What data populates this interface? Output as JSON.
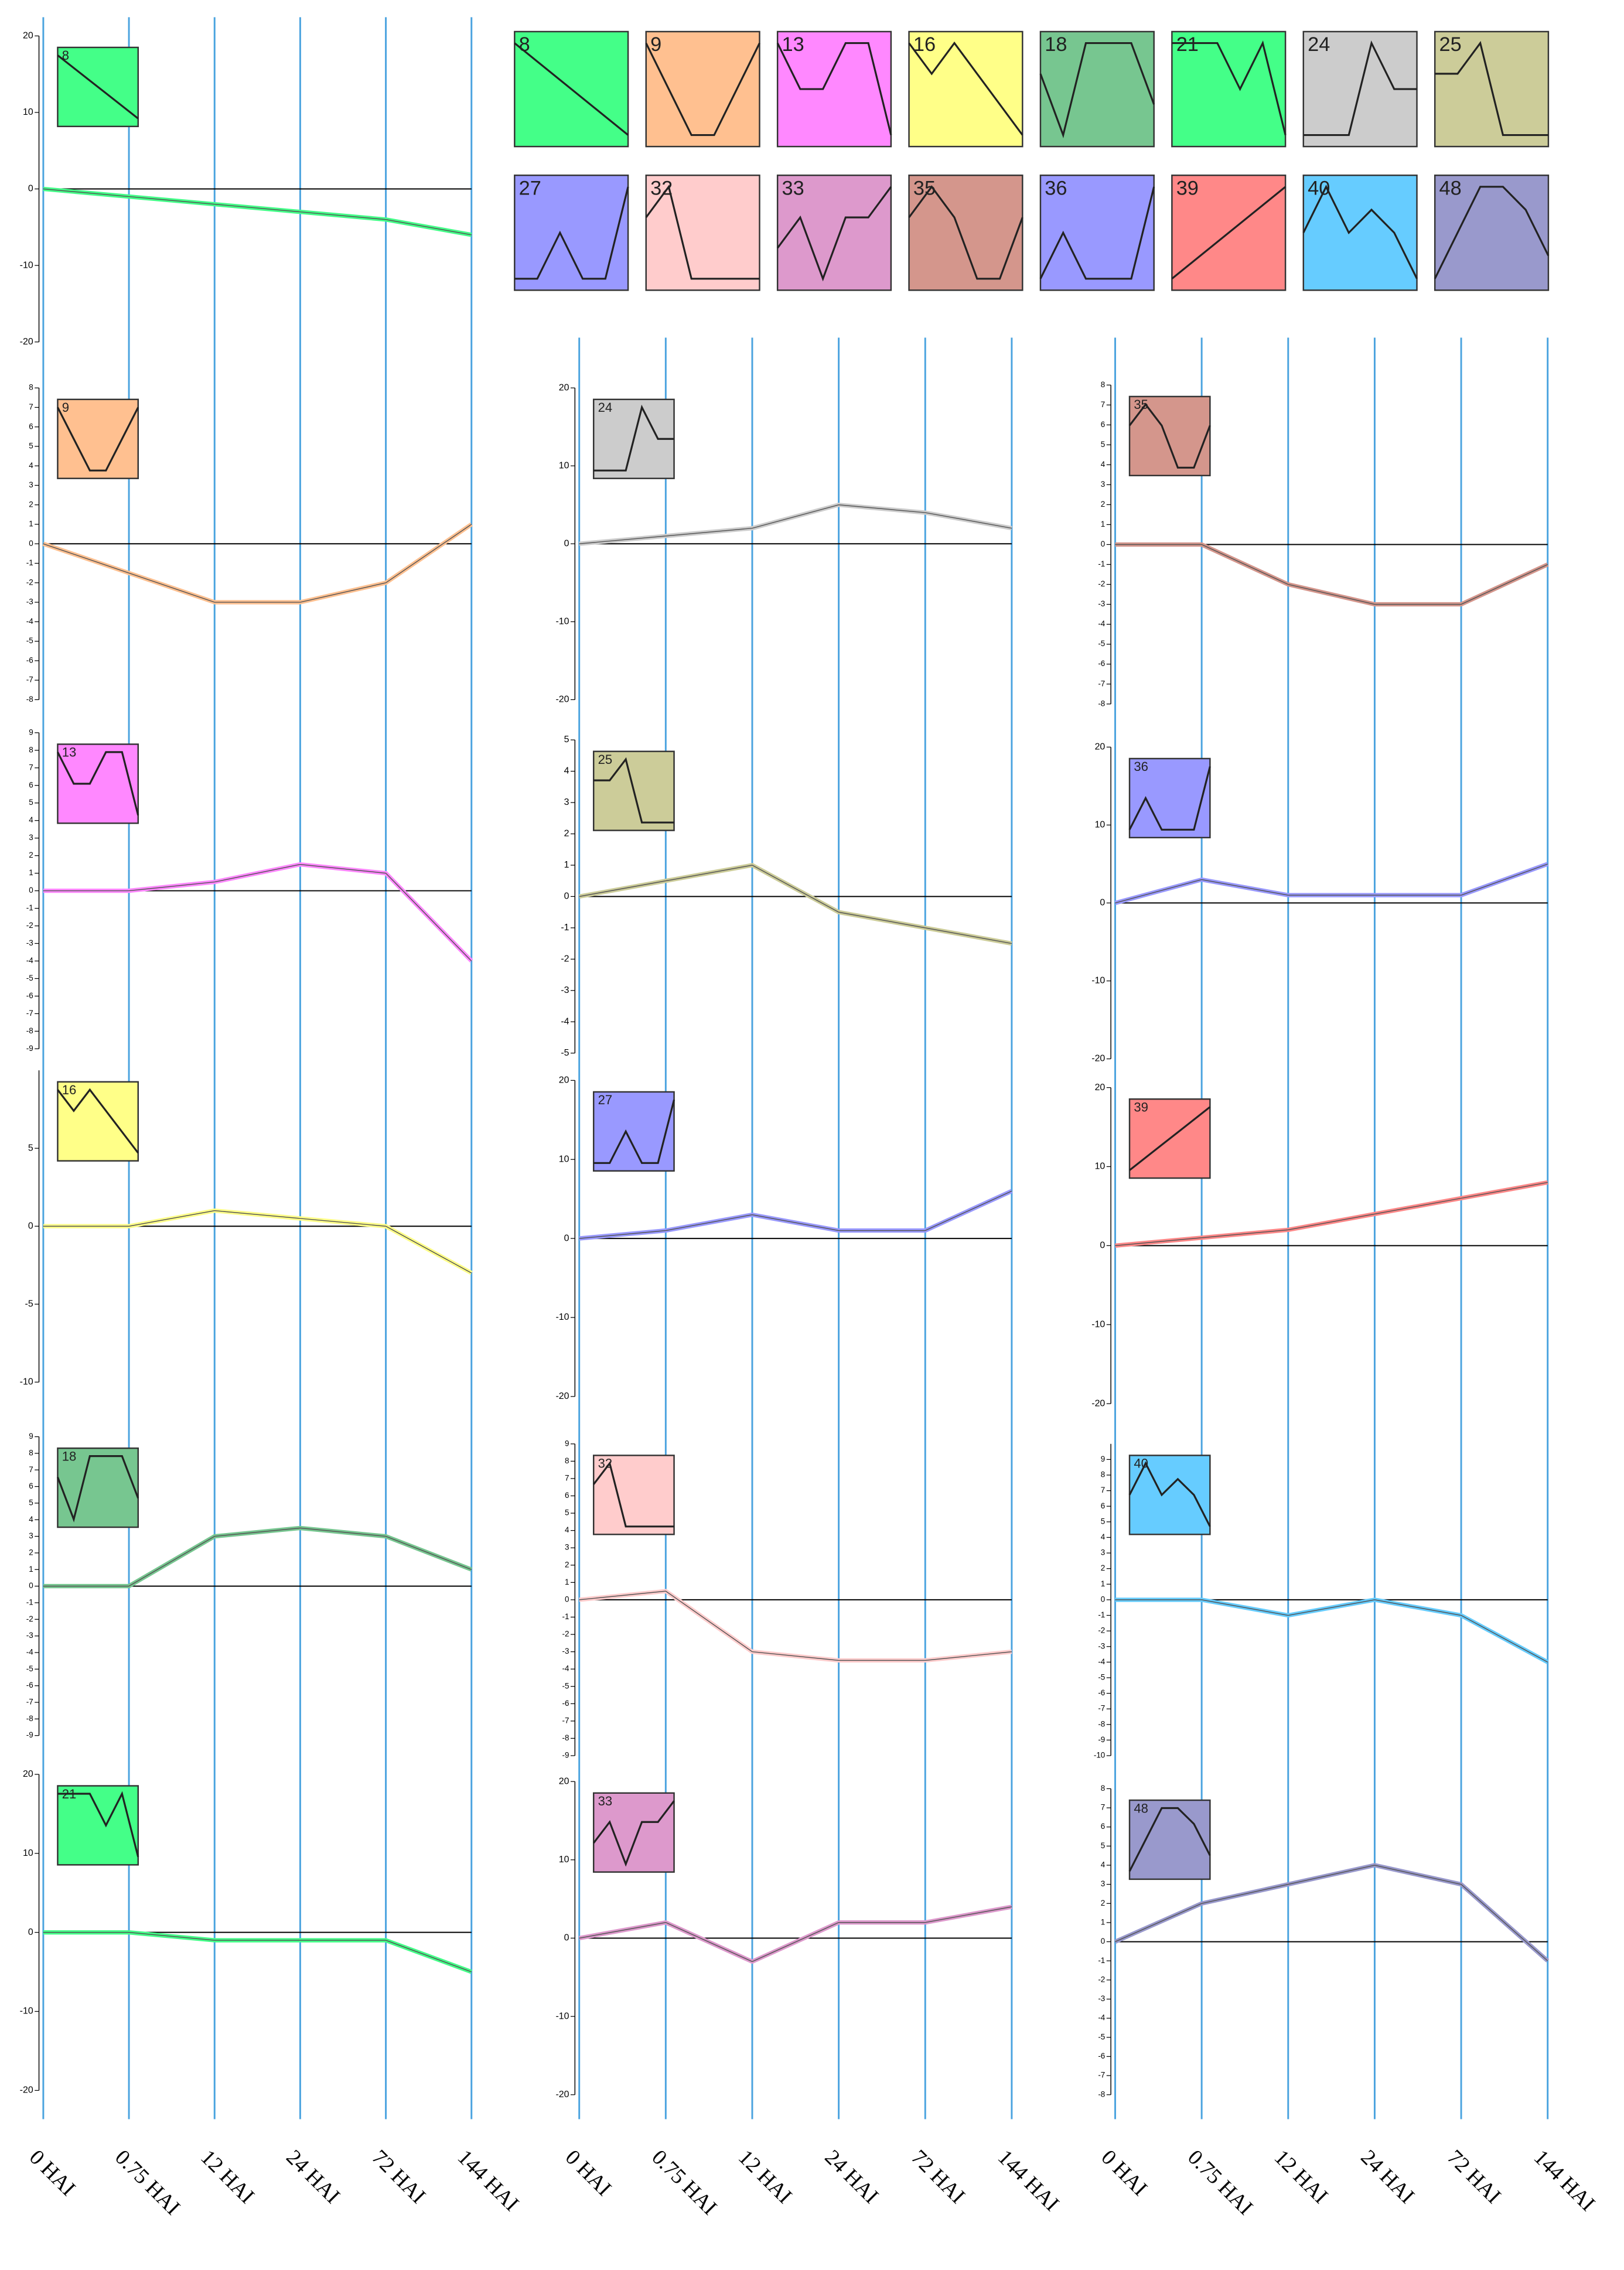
{
  "chart_data": [
    {
      "type": "line",
      "title": "8",
      "color": "#44ff88",
      "profile": [
        0,
        -1,
        -2,
        -3,
        -4,
        -5
      ],
      "categories": [
        "0 HAI",
        "0.75 HAI",
        "12 HAI",
        "24 HAI",
        "72 HAI",
        "144 HAI"
      ],
      "values": [
        0,
        -1,
        -2,
        -3,
        -4,
        -6
      ],
      "ylim": [
        -20,
        20
      ],
      "yticks": [
        20,
        10,
        0,
        -10,
        -20
      ]
    },
    {
      "type": "line",
      "title": "9",
      "color": "#ffc090",
      "profile": [
        0,
        -1,
        -2,
        -2,
        -1,
        0
      ],
      "categories": [
        "0 HAI",
        "0.75 HAI",
        "12 HAI",
        "24 HAI",
        "72 HAI",
        "144 HAI"
      ],
      "values": [
        0,
        -1.5,
        -3,
        -3,
        -2,
        1
      ],
      "ylim": [
        -8,
        8
      ],
      "yticks": [
        8,
        7,
        6,
        5,
        4,
        3,
        2,
        1,
        0,
        -1,
        -2,
        -3,
        -4,
        -5,
        -6,
        -7,
        -8
      ]
    },
    {
      "type": "line",
      "title": "13",
      "color": "#ff88ff",
      "profile": [
        0,
        -1,
        -1,
        0,
        0,
        -2
      ],
      "categories": [
        "0 HAI",
        "0.75 HAI",
        "12 HAI",
        "24 HAI",
        "72 HAI",
        "144 HAI"
      ],
      "values": [
        0,
        0,
        0.5,
        1.5,
        1,
        -4
      ],
      "ylim": [
        -9,
        9
      ],
      "yticks": [
        9,
        8,
        7,
        6,
        5,
        4,
        3,
        2,
        1,
        0,
        -1,
        -2,
        -3,
        -4,
        -5,
        -6,
        -7,
        -8,
        -9
      ]
    },
    {
      "type": "line",
      "title": "16",
      "color": "#ffff88",
      "profile": [
        0,
        -1,
        0,
        -1,
        -2,
        -3
      ],
      "categories": [
        "0 HAI",
        "0.75 HAI",
        "12 HAI",
        "24 HAI",
        "72 HAI",
        "144 HAI"
      ],
      "values": [
        0,
        0,
        1,
        0.5,
        0,
        -3
      ],
      "ylim": [
        -10,
        10
      ],
      "yticks": [
        5,
        0,
        -5,
        -10
      ]
    },
    {
      "type": "line",
      "title": "18",
      "color": "#77c690",
      "profile": [
        0,
        -2,
        1,
        1,
        1,
        -1
      ],
      "categories": [
        "0 HAI",
        "0.75 HAI",
        "12 HAI",
        "24 HAI",
        "72 HAI",
        "144 HAI"
      ],
      "values": [
        0,
        0,
        3,
        3.5,
        3,
        1
      ],
      "ylim": [
        -9,
        9
      ],
      "yticks": [
        9,
        8,
        7,
        6,
        5,
        4,
        3,
        2,
        1,
        0,
        -1,
        -2,
        -3,
        -4,
        -5,
        -6,
        -7,
        -8,
        -9
      ]
    },
    {
      "type": "line",
      "title": "21",
      "color": "#44ff88",
      "profile": [
        0,
        0,
        0,
        -1,
        0,
        -2
      ],
      "categories": [
        "0 HAI",
        "0.75 HAI",
        "12 HAI",
        "24 HAI",
        "72 HAI",
        "144 HAI"
      ],
      "values": [
        0,
        0,
        -1,
        -1,
        -1,
        -5
      ],
      "ylim": [
        -20,
        20
      ],
      "yticks": [
        20,
        10,
        0,
        -10,
        -20
      ]
    },
    {
      "type": "line",
      "title": "24",
      "color": "#cccccc",
      "profile": [
        0,
        0,
        0,
        2,
        1,
        1
      ],
      "categories": [
        "0 HAI",
        "0.75 HAI",
        "12 HAI",
        "24 HAI",
        "72 HAI",
        "144 HAI"
      ],
      "values": [
        0,
        1,
        2,
        5,
        4,
        2
      ],
      "ylim": [
        -20,
        20
      ],
      "yticks": [
        20,
        10,
        0,
        -10,
        -20
      ]
    },
    {
      "type": "line",
      "title": "25",
      "color": "#cccc99",
      "profile": [
        0,
        0,
        1,
        -2,
        -2,
        -2
      ],
      "categories": [
        "0 HAI",
        "0.75 HAI",
        "12 HAI",
        "24 HAI",
        "72 HAI",
        "144 HAI"
      ],
      "values": [
        0,
        0.5,
        1,
        -0.5,
        -1,
        -1.5
      ],
      "ylim": [
        -5,
        5
      ],
      "yticks": [
        5,
        4,
        3,
        2,
        1,
        0,
        -1,
        -2,
        -3,
        -4,
        -5
      ]
    },
    {
      "type": "line",
      "title": "27",
      "color": "#9999ff",
      "profile": [
        0,
        0,
        1,
        0,
        0,
        2
      ],
      "categories": [
        "0 HAI",
        "0.75 HAI",
        "12 HAI",
        "24 HAI",
        "72 HAI",
        "144 HAI"
      ],
      "values": [
        0,
        1,
        3,
        1,
        1,
        6
      ],
      "ylim": [
        -20,
        20
      ],
      "yticks": [
        20,
        10,
        0,
        -10,
        -20
      ]
    },
    {
      "type": "line",
      "title": "32",
      "color": "#ffcccc",
      "profile": [
        0,
        1,
        -2,
        -2,
        -2,
        -2
      ],
      "categories": [
        "0 HAI",
        "0.75 HAI",
        "12 HAI",
        "24 HAI",
        "72 HAI",
        "144 HAI"
      ],
      "values": [
        0,
        0.5,
        -3,
        -3.5,
        -3.5,
        -3
      ],
      "ylim": [
        -9,
        9
      ],
      "yticks": [
        9,
        8,
        7,
        6,
        5,
        4,
        3,
        2,
        1,
        0,
        -1,
        -2,
        -3,
        -4,
        -5,
        -6,
        -7,
        -8,
        -9
      ]
    },
    {
      "type": "line",
      "title": "33",
      "color": "#dd99cc",
      "profile": [
        0,
        1,
        -1,
        1,
        1,
        2
      ],
      "categories": [
        "0 HAI",
        "0.75 HAI",
        "12 HAI",
        "24 HAI",
        "72 HAI",
        "144 HAI"
      ],
      "values": [
        0,
        2,
        -3,
        2,
        2,
        4
      ],
      "ylim": [
        -20,
        20
      ],
      "yticks": [
        20,
        10,
        0,
        -10,
        -20
      ]
    },
    {
      "type": "line",
      "title": "35",
      "color": "#d4968c",
      "profile": [
        0,
        1,
        0,
        -2,
        -2,
        0
      ],
      "categories": [
        "0 HAI",
        "0.75 HAI",
        "12 HAI",
        "24 HAI",
        "72 HAI",
        "144 HAI"
      ],
      "values": [
        0,
        0,
        -2,
        -3,
        -3,
        -1
      ],
      "ylim": [
        -8,
        8
      ],
      "yticks": [
        8,
        7,
        6,
        5,
        4,
        3,
        2,
        1,
        0,
        -1,
        -2,
        -3,
        -4,
        -5,
        -6,
        -7,
        -8
      ]
    },
    {
      "type": "line",
      "title": "36",
      "color": "#9999ff",
      "profile": [
        0,
        1,
        0,
        0,
        0,
        2
      ],
      "categories": [
        "0 HAI",
        "0.75 HAI",
        "12 HAI",
        "24 HAI",
        "72 HAI",
        "144 HAI"
      ],
      "values": [
        0,
        3,
        1,
        1,
        1,
        5
      ],
      "ylim": [
        -20,
        20
      ],
      "yticks": [
        20,
        10,
        0,
        -10,
        -20
      ]
    },
    {
      "type": "line",
      "title": "39",
      "color": "#ff8888",
      "profile": [
        0,
        1,
        2,
        3,
        4,
        5
      ],
      "categories": [
        "0 HAI",
        "0.75 HAI",
        "12 HAI",
        "24 HAI",
        "72 HAI",
        "144 HAI"
      ],
      "values": [
        0,
        1,
        2,
        4,
        6,
        8
      ],
      "ylim": [
        -20,
        20
      ],
      "yticks": [
        20,
        10,
        0,
        -10,
        -20
      ]
    },
    {
      "type": "line",
      "title": "40",
      "color": "#66ccff",
      "profile": [
        0,
        2,
        0,
        1,
        0,
        -2
      ],
      "categories": [
        "0 HAI",
        "0.75 HAI",
        "12 HAI",
        "24 HAI",
        "72 HAI",
        "144 HAI"
      ],
      "values": [
        0,
        0,
        -1,
        0,
        -1,
        -4
      ],
      "ylim": [
        -10,
        10
      ],
      "yticks": [
        9,
        8,
        7,
        6,
        5,
        4,
        3,
        2,
        1,
        0,
        -1,
        -2,
        -3,
        -4,
        -5,
        -6,
        -7,
        -8,
        -9,
        -10
      ]
    },
    {
      "type": "line",
      "title": "48",
      "color": "#9999cc",
      "profile": [
        0,
        1,
        2,
        2,
        1.5,
        0.5
      ],
      "categories": [
        "0 HAI",
        "0.75 HAI",
        "12 HAI",
        "24 HAI",
        "72 HAI",
        "144 HAI"
      ],
      "values": [
        0,
        2,
        3,
        4,
        3,
        -1
      ],
      "ylim": [
        -8,
        8
      ],
      "yticks": [
        8,
        7,
        6,
        5,
        4,
        3,
        2,
        1,
        0,
        -1,
        -2,
        -3,
        -4,
        -5,
        -6,
        -7,
        -8
      ]
    }
  ]
}
